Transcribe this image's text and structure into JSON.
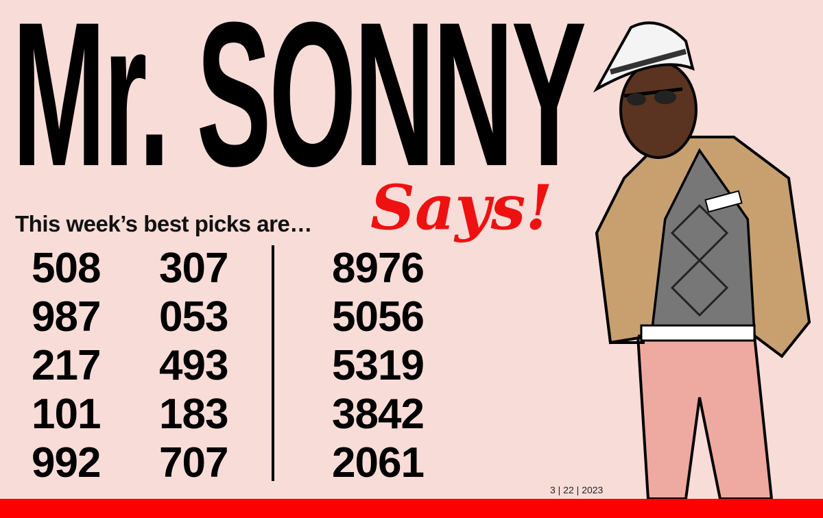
{
  "title": "Mr. SONNY",
  "script_word": "Says!",
  "subtitle": "This week’s best picks are…",
  "picks": {
    "three_digit_col1": [
      "508",
      "987",
      "217",
      "101",
      "992"
    ],
    "three_digit_col2": [
      "307",
      "053",
      "493",
      "183",
      "707"
    ],
    "four_digit": [
      "8976",
      "5056",
      "5319",
      "3842",
      "2061"
    ]
  },
  "date": "3 | 22 | 2023",
  "colors": {
    "background": "#f8dcd8",
    "accent_red": "#ff0000",
    "text": "#000000"
  },
  "illustration": {
    "pocket_card": "650"
  }
}
